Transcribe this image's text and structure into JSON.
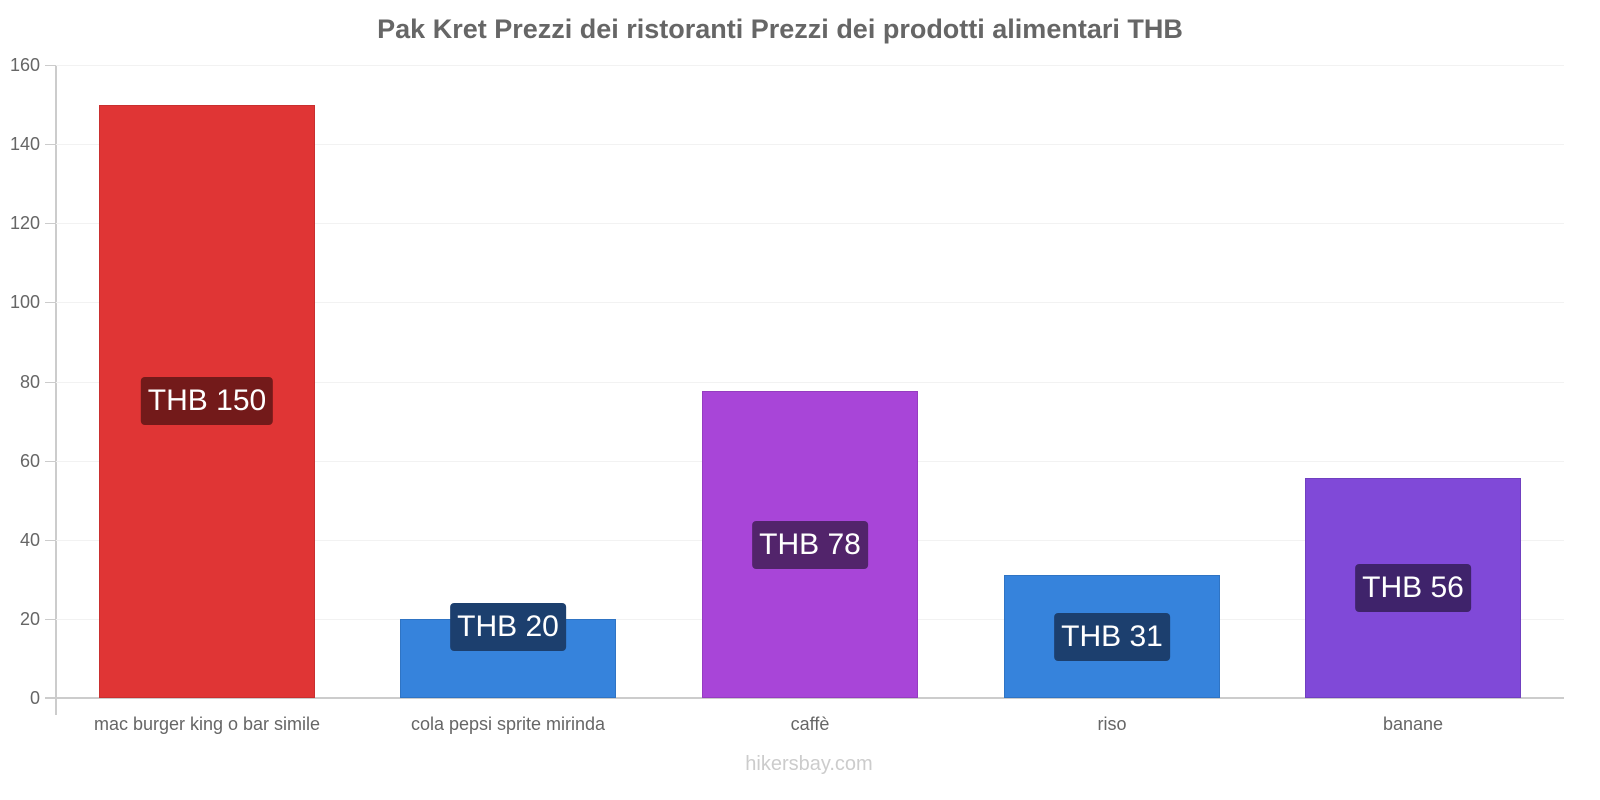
{
  "title": "Pak Kret Prezzi dei ristoranti Prezzi dei prodotti alimentari THB",
  "watermark": "hikersbay.com",
  "y_axis": {
    "ticks": [
      "0",
      "20",
      "40",
      "60",
      "80",
      "100",
      "120",
      "140",
      "160"
    ]
  },
  "bars": [
    {
      "category": "mac burger king o bar simile",
      "value": 150,
      "label": "THB 150",
      "color": "#e03535",
      "border": "#c92f2f",
      "label_bg": "#731a1a"
    },
    {
      "category": "cola pepsi sprite mirinda",
      "value": 20,
      "label": "THB 20",
      "color": "#3683dc",
      "border": "#2f74c4",
      "label_bg": "#1c3f6e"
    },
    {
      "category": "caffè",
      "value": 77.5,
      "label": "THB 78",
      "color": "#a845d8",
      "border": "#953dc0",
      "label_bg": "#52246b"
    },
    {
      "category": "riso",
      "value": 31,
      "label": "THB 31",
      "color": "#3683dc",
      "border": "#2f74c4",
      "label_bg": "#1c3f6e"
    },
    {
      "category": "banane",
      "value": 55.5,
      "label": "THB 56",
      "color": "#8049d8",
      "border": "#7040c0",
      "label_bg": "#3f236b"
    }
  ],
  "chart_data": {
    "type": "bar",
    "title": "Pak Kret Prezzi dei ristoranti Prezzi dei prodotti alimentari THB",
    "xlabel": "",
    "ylabel": "",
    "categories": [
      "mac burger king o bar simile",
      "cola pepsi sprite mirinda",
      "caffè",
      "riso",
      "banane"
    ],
    "values": [
      150,
      20,
      78,
      31,
      56
    ],
    "data_labels": [
      "THB 150",
      "THB 20",
      "THB 78",
      "THB 31",
      "THB 56"
    ],
    "colors": [
      "#e03535",
      "#3683dc",
      "#a845d8",
      "#3683dc",
      "#8049d8"
    ],
    "ylim": [
      0,
      160
    ],
    "yticks": [
      0,
      20,
      40,
      60,
      80,
      100,
      120,
      140,
      160
    ],
    "grid": true,
    "legend": "none"
  }
}
